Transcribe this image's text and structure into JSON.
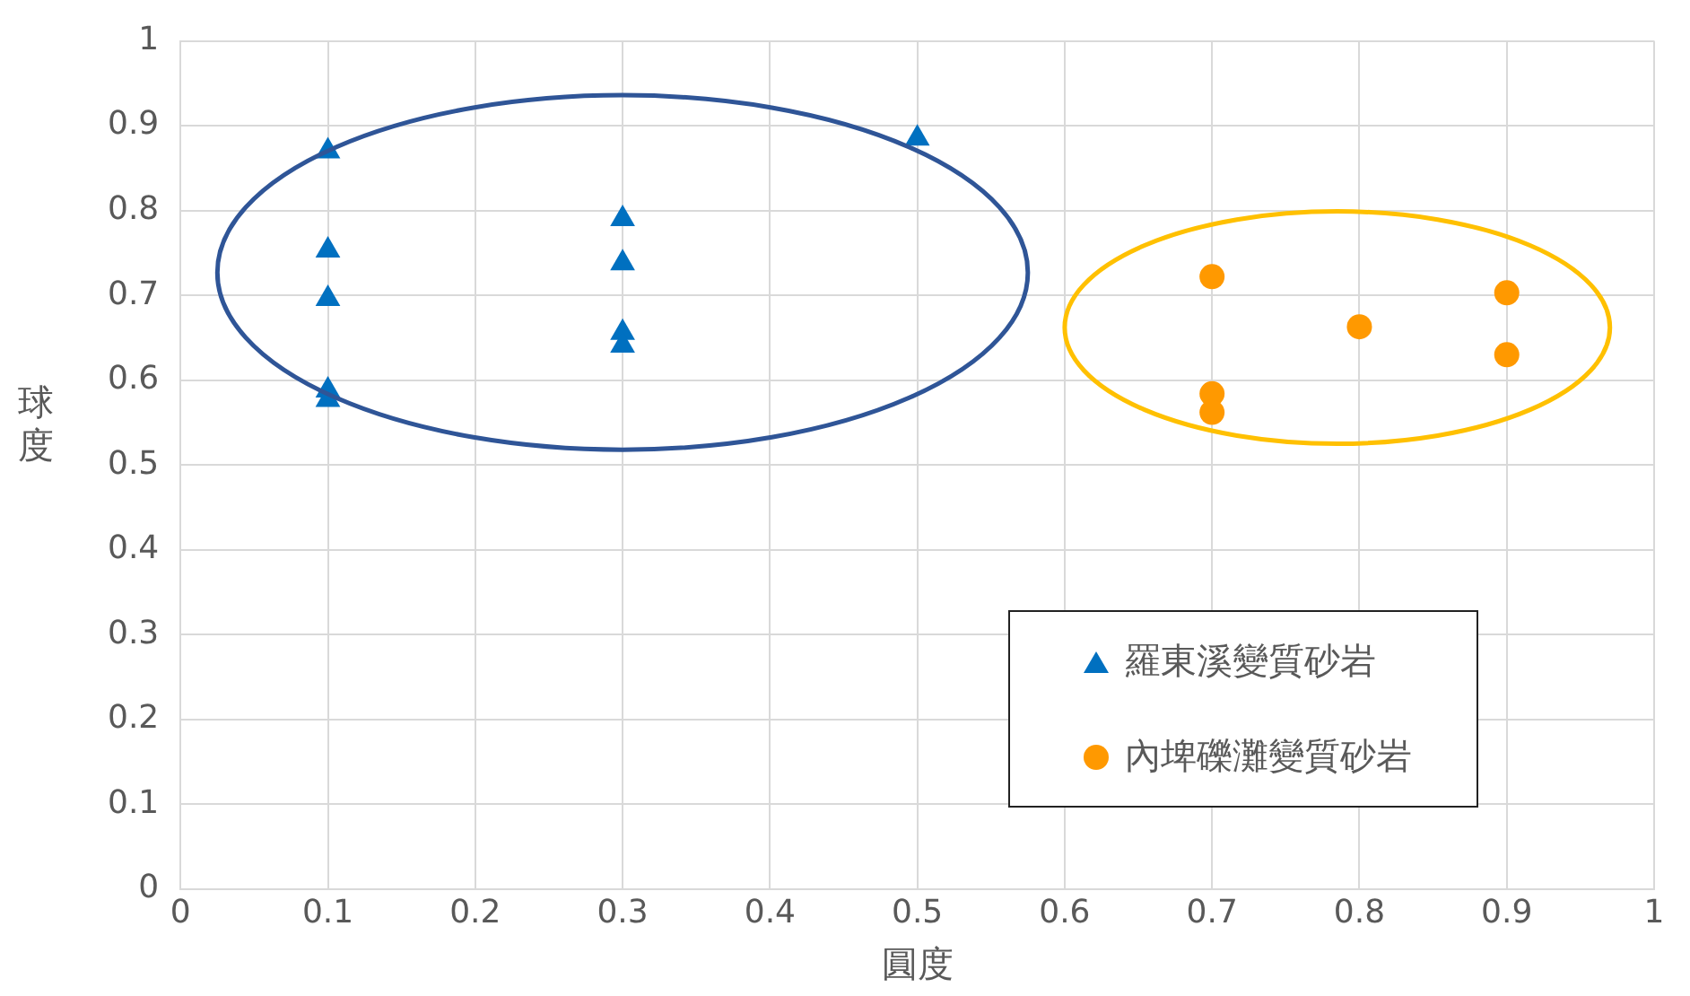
{
  "chart_data": {
    "type": "scatter",
    "xlabel": "圓度",
    "ylabel": "球度",
    "xlim": [
      0,
      1
    ],
    "xticks": [
      0,
      0.1,
      0.2,
      0.3,
      0.4,
      0.5,
      0.6,
      0.7,
      0.8,
      0.9,
      1
    ],
    "ylim": [
      0,
      1
    ],
    "yticks": [
      0,
      0.1,
      0.2,
      0.3,
      0.4,
      0.5,
      0.6,
      0.7,
      0.8,
      0.9,
      1
    ],
    "grid": true,
    "legend": "bottom right",
    "series": [
      {
        "name": "羅東溪變質砂岩",
        "color": "#0070c0",
        "marker": "triangle",
        "x": [
          0.1,
          0.1,
          0.1,
          0.1,
          0.1,
          0.3,
          0.3,
          0.3,
          0.3,
          0.5
        ],
        "values": [
          0.87,
          0.753,
          0.696,
          0.588,
          0.577,
          0.79,
          0.738,
          0.656,
          0.641,
          0.885
        ]
      },
      {
        "name": "內埤礫灘變質砂岩",
        "color": "#ff9900",
        "marker": "circle",
        "x": [
          0.7,
          0.7,
          0.7,
          0.8,
          0.9,
          0.9
        ],
        "values": [
          0.722,
          0.584,
          0.562,
          0.663,
          0.703,
          0.63
        ]
      }
    ]
  }
}
